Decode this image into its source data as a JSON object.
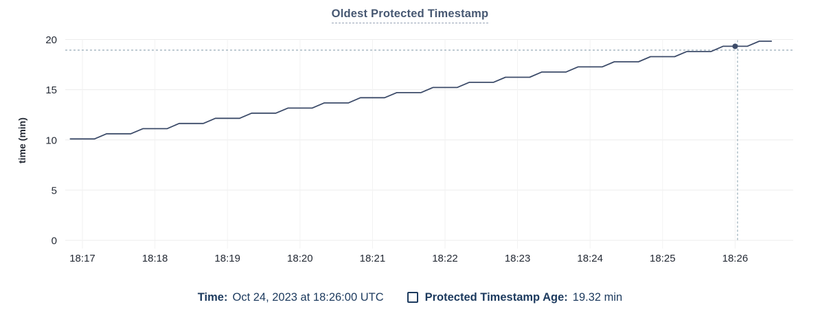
{
  "chart_data": {
    "type": "line",
    "title": "Oldest Protected Timestamp",
    "xlabel": "",
    "ylabel": "time (min)",
    "ylim": [
      0,
      20
    ],
    "yticks": [
      0,
      5,
      10,
      15,
      20
    ],
    "xticks": [
      "18:17",
      "18:18",
      "18:19",
      "18:20",
      "18:21",
      "18:22",
      "18:23",
      "18:24",
      "18:25",
      "18:26"
    ],
    "grid": true,
    "legend_position": "bottom",
    "colors": {
      "line": "#3c4b69",
      "grid_h": "#ececec",
      "grid_v": "#f2f2f2",
      "crosshair": "#96abb7",
      "axis_text": "#242a35",
      "title": "#475872",
      "legend_text": "#1c3a5e"
    },
    "series": [
      {
        "name": "Protected Timestamp Age",
        "unit": "min",
        "points": [
          [
            "18:16:50",
            10.1
          ],
          [
            "18:17:00",
            10.1
          ],
          [
            "18:17:10",
            10.1
          ],
          [
            "18:17:20",
            10.61
          ],
          [
            "18:17:30",
            10.61
          ],
          [
            "18:17:40",
            10.61
          ],
          [
            "18:17:50",
            11.12
          ],
          [
            "18:18:00",
            11.12
          ],
          [
            "18:18:10",
            11.12
          ],
          [
            "18:18:20",
            11.64
          ],
          [
            "18:18:30",
            11.64
          ],
          [
            "18:18:40",
            11.64
          ],
          [
            "18:18:50",
            12.15
          ],
          [
            "18:19:00",
            12.15
          ],
          [
            "18:19:10",
            12.15
          ],
          [
            "18:19:20",
            12.66
          ],
          [
            "18:19:30",
            12.66
          ],
          [
            "18:19:40",
            12.66
          ],
          [
            "18:19:50",
            13.17
          ],
          [
            "18:20:00",
            13.17
          ],
          [
            "18:20:10",
            13.17
          ],
          [
            "18:20:20",
            13.68
          ],
          [
            "18:20:30",
            13.68
          ],
          [
            "18:20:40",
            13.68
          ],
          [
            "18:20:50",
            14.2
          ],
          [
            "18:21:00",
            14.2
          ],
          [
            "18:21:10",
            14.2
          ],
          [
            "18:21:20",
            14.71
          ],
          [
            "18:21:30",
            14.71
          ],
          [
            "18:21:40",
            14.71
          ],
          [
            "18:21:50",
            15.22
          ],
          [
            "18:22:00",
            15.22
          ],
          [
            "18:22:10",
            15.22
          ],
          [
            "18:22:20",
            15.73
          ],
          [
            "18:22:30",
            15.73
          ],
          [
            "18:22:40",
            15.73
          ],
          [
            "18:22:50",
            16.24
          ],
          [
            "18:23:00",
            16.24
          ],
          [
            "18:23:10",
            16.24
          ],
          [
            "18:23:20",
            16.76
          ],
          [
            "18:23:30",
            16.76
          ],
          [
            "18:23:40",
            16.76
          ],
          [
            "18:23:50",
            17.27
          ],
          [
            "18:24:00",
            17.27
          ],
          [
            "18:24:10",
            17.27
          ],
          [
            "18:24:20",
            17.78
          ],
          [
            "18:24:30",
            17.78
          ],
          [
            "18:24:40",
            17.78
          ],
          [
            "18:24:50",
            18.29
          ],
          [
            "18:25:00",
            18.29
          ],
          [
            "18:25:10",
            18.29
          ],
          [
            "18:25:20",
            18.8
          ],
          [
            "18:25:30",
            18.8
          ],
          [
            "18:25:40",
            18.8
          ],
          [
            "18:25:50",
            19.32
          ],
          [
            "18:26:00",
            19.32
          ],
          [
            "18:26:10",
            19.32
          ],
          [
            "18:26:20",
            19.83
          ],
          [
            "18:26:30",
            19.83
          ]
        ]
      }
    ],
    "crosshair": {
      "hover_time": "18:26:02",
      "hover_value": 18.94,
      "point_time": "18:26:00",
      "point_value": 19.32
    }
  },
  "legend": {
    "time_label": "Time:",
    "time_value": "Oct 24, 2023 at 18:26:00 UTC",
    "series_label": "Protected Timestamp Age:",
    "series_value": "19.32 min"
  }
}
